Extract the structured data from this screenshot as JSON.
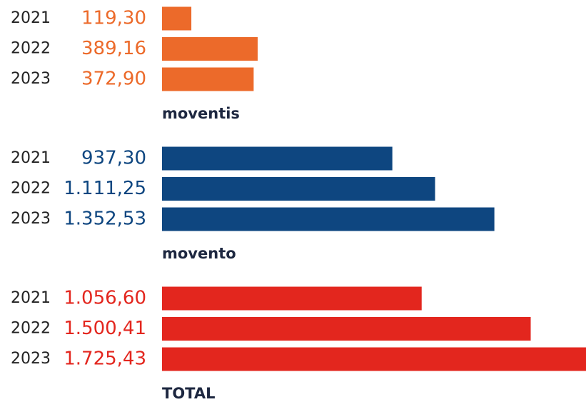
{
  "chart_data": [
    {
      "type": "bar",
      "orientation": "horizontal",
      "title": "moventis",
      "color": "#ec6a2a",
      "categories": [
        "2021",
        "2022",
        "2023"
      ],
      "values": [
        119.3,
        389.16,
        372.9
      ],
      "value_labels": [
        "119,30",
        "389,16",
        "372,90"
      ]
    },
    {
      "type": "bar",
      "orientation": "horizontal",
      "title": "movento",
      "color": "#0e4680",
      "categories": [
        "2021",
        "2022",
        "2023"
      ],
      "values": [
        937.3,
        1111.25,
        1352.53
      ],
      "value_labels": [
        "937,30",
        "1.111,25",
        "1.352,53"
      ]
    },
    {
      "type": "bar",
      "orientation": "horizontal",
      "title": "TOTAL",
      "color": "#e3261e",
      "categories": [
        "2021",
        "2022",
        "2023"
      ],
      "values": [
        1056.6,
        1500.41,
        1725.43
      ],
      "value_labels": [
        "1.056,60",
        "1.500,41",
        "1.725,43"
      ]
    }
  ]
}
